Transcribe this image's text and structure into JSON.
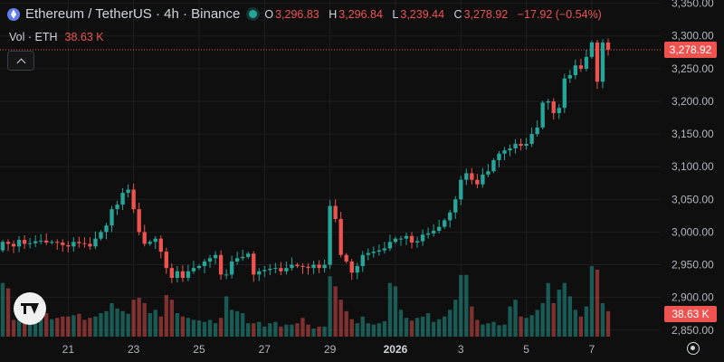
{
  "header": {
    "title": "Ethereum / TetherUS · 4h · Binance",
    "ohlc": [
      {
        "key": "O",
        "value": "3,296.83"
      },
      {
        "key": "H",
        "value": "3,296.84"
      },
      {
        "key": "L",
        "value": "3,239.44"
      },
      {
        "key": "C",
        "value": "3,278.92"
      }
    ],
    "change": "−17.92 (−0.54%)"
  },
  "volume_legend": {
    "label": "Vol · ETH",
    "value": "38.63 K"
  },
  "price_label": "3,278.92",
  "volume_label": "38.63 K",
  "colors": {
    "up": "#26a69a",
    "down": "#ef5350",
    "background": "#0f0f0f",
    "grid": "#1f1f1f",
    "text": "#b2b5be"
  },
  "chart_data": {
    "type": "candlestick",
    "y_ticks": [
      2850,
      2900,
      2950,
      3000,
      3050,
      3100,
      3150,
      3200,
      3250,
      3300,
      3350
    ],
    "y_tick_labels": [
      "2,850.00",
      "2,900.00",
      "2,950.00",
      "3,000.00",
      "3,050.00",
      "3,100.00",
      "3,150.00",
      "3,200.00",
      "3,250.00",
      "3,300.00",
      "3,350.00"
    ],
    "ylim": [
      2840,
      3355
    ],
    "x_ticks": [
      {
        "label": "21",
        "index": 12,
        "bold": false
      },
      {
        "label": "23",
        "index": 24,
        "bold": false
      },
      {
        "label": "25",
        "index": 36,
        "bold": false
      },
      {
        "label": "27",
        "index": 48,
        "bold": false
      },
      {
        "label": "29",
        "index": 60,
        "bold": false
      },
      {
        "label": "2026",
        "index": 72,
        "bold": true
      },
      {
        "label": "3",
        "index": 84,
        "bold": false
      },
      {
        "label": "5",
        "index": 96,
        "bold": false
      },
      {
        "label": "7",
        "index": 108,
        "bold": false
      }
    ],
    "last_price": 3278.92,
    "volume_ylim": [
      0,
      120
    ],
    "close": [
      2985,
      2982,
      2978,
      2988,
      2982,
      2983,
      2986,
      2987,
      2984,
      2985,
      2984,
      2980,
      2978,
      2985,
      2983,
      2982,
      2978,
      2990,
      3000,
      3010,
      3035,
      3042,
      3060,
      3065,
      3035,
      3000,
      2982,
      2985,
      2990,
      2970,
      2945,
      2930,
      2940,
      2930,
      2940,
      2945,
      2948,
      2955,
      2960,
      2965,
      2935,
      2935,
      2955,
      2960,
      2962,
      2967,
      2935,
      2940,
      2942,
      2944,
      2945,
      2940,
      2945,
      2950,
      2948,
      2947,
      2945,
      2950,
      2945,
      2950,
      3040,
      3020,
      2965,
      2955,
      2938,
      2948,
      2965,
      2968,
      2970,
      2972,
      2975,
      2985,
      2990,
      2990,
      2994,
      2984,
      2986,
      2996,
      2998,
      3002,
      3008,
      3018,
      3030,
      3050,
      3080,
      3090,
      3080,
      3073,
      3088,
      3093,
      3110,
      3120,
      3125,
      3128,
      3135,
      3132,
      3135,
      3150,
      3160,
      3198,
      3200,
      3182,
      3190,
      3235,
      3240,
      3255,
      3250,
      3268,
      3290,
      3230,
      3290,
      3278.92
    ],
    "volume": [
      80,
      72,
      25,
      30,
      40,
      22,
      24,
      30,
      35,
      26,
      28,
      30,
      30,
      32,
      34,
      25,
      28,
      30,
      35,
      38,
      50,
      42,
      38,
      34,
      55,
      58,
      50,
      35,
      40,
      30,
      62,
      55,
      35,
      30,
      28,
      25,
      24,
      22,
      25,
      20,
      28,
      60,
      40,
      38,
      35,
      20,
      20,
      22,
      15,
      20,
      22,
      15,
      18,
      18,
      20,
      28,
      18,
      12,
      15,
      15,
      90,
      75,
      55,
      38,
      26,
      20,
      30,
      20,
      18,
      20,
      23,
      80,
      75,
      40,
      28,
      24,
      28,
      30,
      35,
      22,
      26,
      30,
      40,
      55,
      92,
      92,
      45,
      25,
      18,
      20,
      22,
      17,
      18,
      45,
      55,
      30,
      28,
      32,
      40,
      50,
      80,
      50,
      70,
      80,
      60,
      40,
      30,
      45,
      105,
      100,
      50,
      38
    ]
  }
}
